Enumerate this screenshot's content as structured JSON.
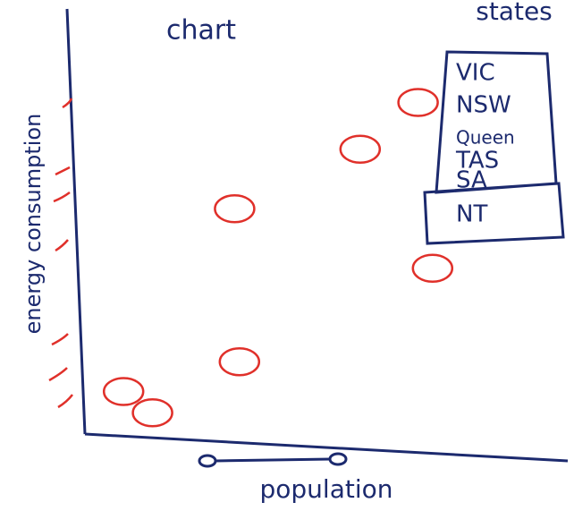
{
  "chart_data": {
    "type": "scatter",
    "title": "chart",
    "x_label": "population",
    "y_label": "energy consumption",
    "x": [
      69,
      57,
      31,
      32,
      8,
      14,
      72
    ],
    "values": [
      78,
      67,
      53,
      17,
      10,
      5,
      39
    ],
    "color": "#e0302a",
    "xlim": [
      0,
      100
    ],
    "ylim": [
      0,
      100
    ],
    "legend": {
      "title": "states",
      "items": [
        "VIC",
        "NSW",
        "Queen",
        "TAS",
        "SA",
        "NT"
      ],
      "position": "upper right"
    }
  }
}
